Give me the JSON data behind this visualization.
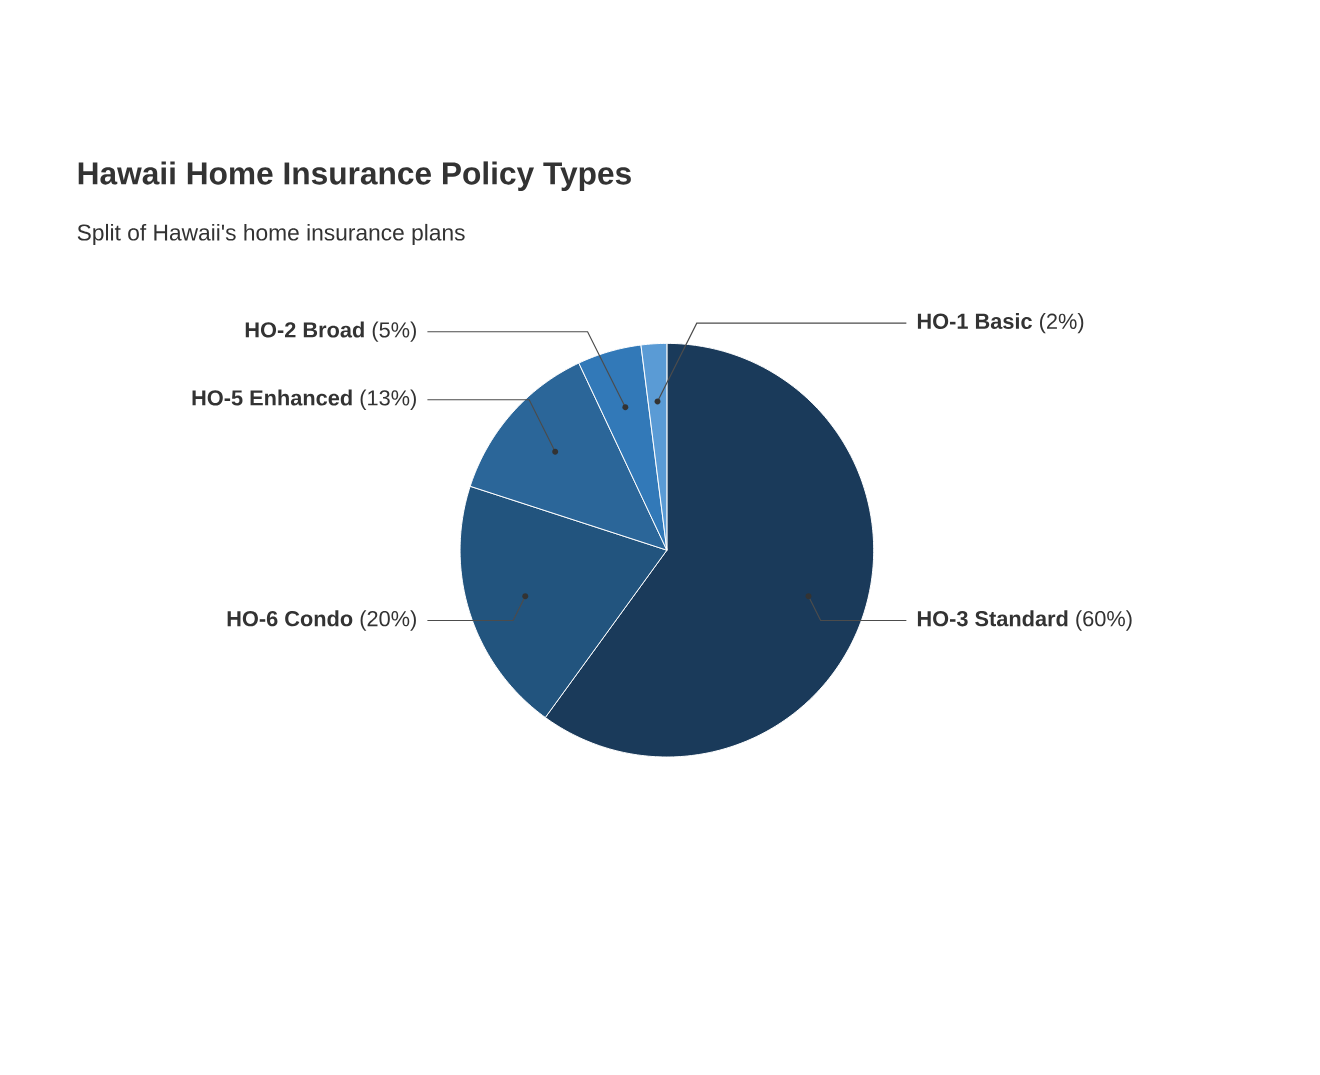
{
  "chart_data": {
    "type": "pie",
    "title": "Hawaii Home Insurance Policy Types",
    "subtitle": "Split of Hawaii's home insurance plans",
    "categories": [
      "HO-3 Standard",
      "HO-6 Condo",
      "HO-5 Enhanced",
      "HO-2 Broad",
      "HO-1 Basic"
    ],
    "values": [
      60,
      20,
      13,
      5,
      2
    ],
    "colors": [
      "#1a3a5a",
      "#22547e",
      "#2b6699",
      "#3279b8",
      "#5a9bd5"
    ],
    "value_labels": [
      "(60%)",
      "(20%)",
      "(13%)",
      "(5%)",
      "(2%)"
    ]
  }
}
